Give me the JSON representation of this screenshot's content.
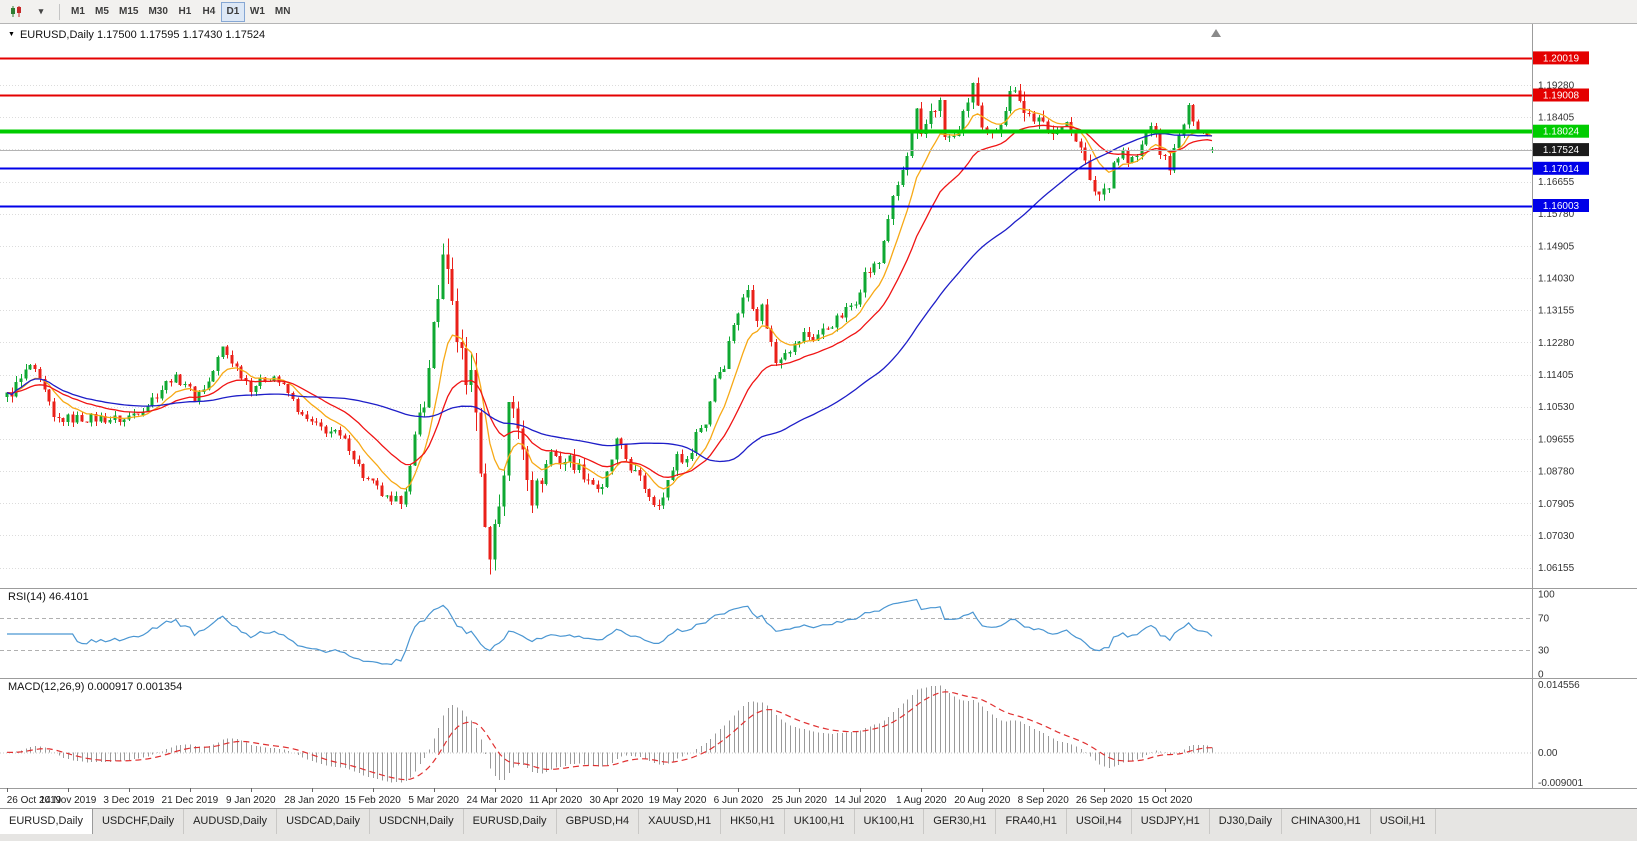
{
  "icons": {
    "menu_triangle": "▼",
    "dropdown": "▾",
    "shift_marker": "▲"
  },
  "toolbar": {
    "timeframes": [
      "M1",
      "M5",
      "M15",
      "M30",
      "H1",
      "H4",
      "D1",
      "W1",
      "MN"
    ],
    "selected_timeframe": "D1"
  },
  "chart": {
    "title": "EURUSD,Daily 1.17500 1.17595 1.17430 1.17524"
  },
  "rsi_label": "RSI(14) 46.4101",
  "macd_label": "MACD(12,26,9) 0.000917 0.001354",
  "tabs": {
    "active_index": 0,
    "items": [
      "EURUSD,Daily",
      "USDCHF,Daily",
      "AUDUSD,Daily",
      "USDCAD,Daily",
      "USDCNH,Daily",
      "EURUSD,Daily",
      "GBPUSD,H4",
      "XAUUSD,H1",
      "HK50,H1",
      "UK100,H1",
      "UK100,H1",
      "GER30,H1",
      "FRA40,H1",
      "USOil,H4",
      "USDJPY,H1",
      "DJ30,Daily",
      "CHINA300,H1",
      "USOil,H1"
    ]
  },
  "chart_data": {
    "type": "candlestick",
    "symbol": "EURUSD",
    "timeframe": "Daily",
    "current_bar": {
      "open": 1.175,
      "high": 1.17595,
      "low": 1.1743,
      "close": 1.17524
    },
    "bars_total": 258,
    "x_label_step": 13,
    "x_axis_labels": [
      "26 Oct 2019",
      "14 Nov 2019",
      "3 Dec 2019",
      "21 Dec 2019",
      "9 Jan 2020",
      "28 Jan 2020",
      "15 Feb 2020",
      "5 Mar 2020",
      "24 Mar 2020",
      "11 Apr 2020",
      "30 Apr 2020",
      "19 May 2020",
      "6 Jun 2020",
      "25 Jun 2020",
      "14 Jul 2020",
      "1 Aug 2020",
      "20 Aug 2020",
      "8 Sep 2020",
      "26 Sep 2020",
      "15 Oct 2020"
    ],
    "y_axis_labels": [
      "1.19280",
      "1.18405",
      "1.17530",
      "1.16655",
      "1.15780",
      "1.14905",
      "1.14030",
      "1.13155",
      "1.12280",
      "1.11405",
      "1.10530",
      "1.09655",
      "1.08780",
      "1.07905",
      "1.07030",
      "1.06155"
    ],
    "price_range": {
      "top": 1.2094,
      "bottom": 1.056
    },
    "levels": [
      {
        "price": 1.20019,
        "label": "1.20019",
        "color": "#e40000",
        "width": 2
      },
      {
        "price": 1.19008,
        "label": "1.19008",
        "color": "#e40000",
        "width": 2
      },
      {
        "price": 1.18024,
        "label": "1.18024",
        "color": "#00cc00",
        "width": 4
      },
      {
        "price": 1.17524,
        "label": "1.17524",
        "color": "#b4b4b4",
        "width": 1,
        "badge": "#1b1b1b",
        "current": true
      },
      {
        "price": 1.17014,
        "label": "1.17014",
        "color": "#0000e8",
        "width": 2
      },
      {
        "price": 1.16003,
        "label": "1.16003",
        "color": "#0000e8",
        "width": 2
      }
    ],
    "moving_averages": [
      {
        "type": "ema",
        "period": 9,
        "color": "#f7a916"
      },
      {
        "type": "ema",
        "period": 22,
        "color": "#f01414"
      },
      {
        "type": "sma",
        "period": 55,
        "color": "#1e1ec8"
      }
    ],
    "colors": {
      "bull": "#0fa832",
      "bear": "#ea2019"
    },
    "close_anchors": [
      [
        0,
        1.108,
        0.004
      ],
      [
        3,
        1.1125,
        0.0038
      ],
      [
        5,
        1.1165,
        0.0036
      ],
      [
        8,
        1.109,
        0.0034
      ],
      [
        10,
        1.1018,
        0.0032
      ],
      [
        15,
        1.1022,
        0.003
      ],
      [
        20,
        1.1021,
        0.003
      ],
      [
        25,
        1.1018,
        0.003
      ],
      [
        30,
        1.106,
        0.003
      ],
      [
        35,
        1.1131,
        0.003
      ],
      [
        38,
        1.112,
        0.0028
      ],
      [
        40,
        1.1078,
        0.0028
      ],
      [
        43,
        1.112,
        0.003
      ],
      [
        46,
        1.1213,
        0.003
      ],
      [
        49,
        1.116,
        0.0028
      ],
      [
        52,
        1.1105,
        0.0028
      ],
      [
        55,
        1.113,
        0.0026
      ],
      [
        57,
        1.1136,
        0.0026
      ],
      [
        60,
        1.109,
        0.0026
      ],
      [
        63,
        1.1025,
        0.0026
      ],
      [
        66,
        1.1,
        0.0028
      ],
      [
        70,
        1.098,
        0.0028
      ],
      [
        73,
        1.0945,
        0.0028
      ],
      [
        76,
        1.0865,
        0.0028
      ],
      [
        79,
        1.083,
        0.0028
      ],
      [
        82,
        1.0785,
        0.003
      ],
      [
        84,
        1.0805,
        0.004
      ],
      [
        86,
        1.088,
        0.0055
      ],
      [
        88,
        1.1026,
        0.007
      ],
      [
        90,
        1.114,
        0.008
      ],
      [
        91,
        1.1284,
        0.0085
      ],
      [
        93,
        1.1446,
        0.0095
      ],
      [
        95,
        1.133,
        0.0095
      ],
      [
        97,
        1.1184,
        0.01
      ],
      [
        98,
        1.1109,
        0.01
      ],
      [
        99,
        1.118,
        0.011
      ],
      [
        100,
        1.0995,
        0.0115
      ],
      [
        101,
        1.091,
        0.0115
      ],
      [
        102,
        1.07,
        0.012
      ],
      [
        103,
        1.068,
        0.0115
      ],
      [
        104,
        1.0725,
        0.01
      ],
      [
        105,
        1.079,
        0.0095
      ],
      [
        106,
        1.088,
        0.009
      ],
      [
        107,
        1.108,
        0.009
      ],
      [
        108,
        1.103,
        0.008
      ],
      [
        110,
        1.095,
        0.007
      ],
      [
        112,
        1.0805,
        0.006
      ],
      [
        114,
        1.086,
        0.0055
      ],
      [
        116,
        1.093,
        0.005
      ],
      [
        118,
        1.0905,
        0.0045
      ],
      [
        120,
        1.091,
        0.004
      ],
      [
        124,
        1.0858,
        0.0038
      ],
      [
        127,
        1.0822,
        0.0038
      ],
      [
        130,
        1.0955,
        0.0038
      ],
      [
        133,
        1.089,
        0.0036
      ],
      [
        136,
        1.0835,
        0.0036
      ],
      [
        138,
        1.0795,
        0.0036
      ],
      [
        140,
        1.0805,
        0.0034
      ],
      [
        143,
        1.0924,
        0.0034
      ],
      [
        145,
        1.09,
        0.0032
      ],
      [
        147,
        1.0983,
        0.0032
      ],
      [
        149,
        1.101,
        0.0032
      ],
      [
        151,
        1.1134,
        0.0034
      ],
      [
        153,
        1.117,
        0.0034
      ],
      [
        155,
        1.1283,
        0.0036
      ],
      [
        158,
        1.1373,
        0.004
      ],
      [
        160,
        1.13,
        0.0038
      ],
      [
        161,
        1.1324,
        0.0036
      ],
      [
        164,
        1.1176,
        0.0036
      ],
      [
        166,
        1.121,
        0.0034
      ],
      [
        168,
        1.1218,
        0.0032
      ],
      [
        170,
        1.125,
        0.003
      ],
      [
        172,
        1.1239,
        0.003
      ],
      [
        175,
        1.127,
        0.003
      ],
      [
        178,
        1.13,
        0.003
      ],
      [
        181,
        1.1344,
        0.0032
      ],
      [
        183,
        1.1413,
        0.0034
      ],
      [
        186,
        1.1445,
        0.0036
      ],
      [
        188,
        1.157,
        0.0038
      ],
      [
        190,
        1.1655,
        0.004
      ],
      [
        192,
        1.1732,
        0.0042
      ],
      [
        194,
        1.1846,
        0.0048
      ],
      [
        195,
        1.1778,
        0.0048
      ],
      [
        197,
        1.1862,
        0.0048
      ],
      [
        199,
        1.1878,
        0.0044
      ],
      [
        200,
        1.1786,
        0.0044
      ],
      [
        202,
        1.1781,
        0.004
      ],
      [
        204,
        1.1842,
        0.004
      ],
      [
        206,
        1.1933,
        0.0044
      ],
      [
        208,
        1.1796,
        0.0042
      ],
      [
        210,
        1.1787,
        0.0038
      ],
      [
        212,
        1.1834,
        0.0038
      ],
      [
        214,
        1.1903,
        0.0038
      ],
      [
        215,
        1.1935,
        0.006
      ],
      [
        216,
        1.1912,
        0.0095
      ],
      [
        217,
        1.1853,
        0.007
      ],
      [
        219,
        1.184,
        0.005
      ],
      [
        222,
        1.1801,
        0.004
      ],
      [
        224,
        1.1815,
        0.0036
      ],
      [
        226,
        1.1816,
        0.0034
      ],
      [
        229,
        1.177,
        0.0034
      ],
      [
        231,
        1.1658,
        0.004
      ],
      [
        233,
        1.1631,
        0.0042
      ],
      [
        235,
        1.1663,
        0.0038
      ],
      [
        236,
        1.172,
        0.0036
      ],
      [
        238,
        1.1748,
        0.0034
      ],
      [
        239,
        1.1716,
        0.0034
      ],
      [
        241,
        1.1733,
        0.0032
      ],
      [
        244,
        1.1826,
        0.0032
      ],
      [
        246,
        1.1745,
        0.0032
      ],
      [
        248,
        1.1708,
        0.0032
      ],
      [
        250,
        1.1785,
        0.003
      ],
      [
        251,
        1.1823,
        0.003
      ],
      [
        252,
        1.1862,
        0.0028
      ],
      [
        254,
        1.1816,
        0.0028
      ],
      [
        256,
        1.179,
        0.0026
      ],
      [
        257,
        1.17524,
        0.002
      ]
    ],
    "rsi": {
      "period": 14,
      "value": 46.4101,
      "levels": [
        70,
        30
      ],
      "axis_labels": [
        "100",
        "70",
        "30",
        "0"
      ],
      "color": "#4a96d2"
    },
    "macd": {
      "fast": 12,
      "slow": 26,
      "signal": 9,
      "values": [
        0.000917,
        0.001354
      ],
      "axis_top": "0.014556",
      "axis_zero": "0.00",
      "axis_bottom": "-0.009001",
      "hist_color": "#9a9a9a",
      "signal_color": "#e03030"
    }
  }
}
